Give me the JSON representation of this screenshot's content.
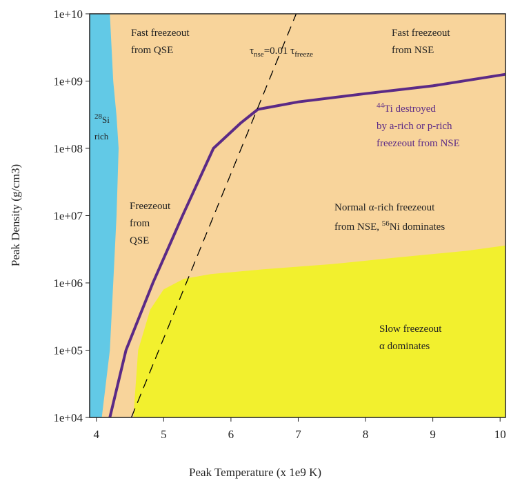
{
  "chart_data": {
    "type": "region",
    "xlabel": "Peak Temperature (x 1e9 K)",
    "ylabel": "Peak Density (g/cm3)",
    "xlim": [
      3.9,
      10.08
    ],
    "ylim": [
      10000,
      10000000000
    ],
    "yscale": "log",
    "background": "#f8d49b",
    "xticks": [
      4,
      5,
      6,
      7,
      8,
      9,
      10
    ],
    "yticks": [
      {
        "value": 10000,
        "label": "1e+04"
      },
      {
        "value": 100000,
        "label": "1e+05"
      },
      {
        "value": 1000000,
        "label": "1e+06"
      },
      {
        "value": 10000000,
        "label": "1e+07"
      },
      {
        "value": 100000000,
        "label": "1e+08"
      },
      {
        "value": 1000000000,
        "label": "1e+09"
      },
      {
        "value": 10000000000,
        "label": "1e+10"
      }
    ],
    "series": [
      {
        "kind": "fill-left",
        "color": "#62c9e6",
        "x": [
          4.2,
          4.25,
          4.3,
          4.33,
          4.3,
          4.25,
          4.2,
          4.08
        ],
        "values": [
          10000000000,
          1000000000,
          300000000,
          100000000,
          10000000,
          1000000,
          100000,
          10000
        ]
      },
      {
        "kind": "fill-below",
        "color": "#f2f02e",
        "x": [
          4.55,
          4.62,
          4.8,
          5.0,
          5.3,
          5.7,
          6.5,
          7.5,
          8.5,
          9.5,
          10.08
        ],
        "values": [
          10000,
          100000,
          400000,
          800000,
          1150000,
          1350000,
          1600000,
          1900000,
          2400000,
          3000000,
          3600000
        ]
      },
      {
        "kind": "line",
        "color": "#5b2a86",
        "x": [
          4.2,
          4.44,
          4.84,
          5.28,
          5.74,
          6.15,
          6.4,
          7.0,
          8.0,
          9.0,
          10.08
        ],
        "values": [
          10000,
          100000,
          1000000,
          10000000,
          100000000,
          240000000,
          380000000,
          490000000,
          650000000,
          850000000,
          1260000000
        ]
      },
      {
        "kind": "dashed",
        "color": "#000000",
        "x": [
          4.52,
          6.97
        ],
        "values": [
          10000,
          10000000000
        ]
      }
    ],
    "annotations": [
      {
        "color": "#222222",
        "lines": [
          [
            {
              "text": "Fast freezeout"
            }
          ],
          [
            {
              "text": "from QSE"
            }
          ]
        ]
      },
      {
        "color": "#222222",
        "lines": [
          [
            {
              "text": "Fast freezeout"
            }
          ],
          [
            {
              "text": "from NSE"
            }
          ]
        ]
      },
      {
        "color": "#222222",
        "lines": [
          [
            {
              "text": "τ"
            },
            {
              "text": "nse",
              "shift": "sub"
            },
            {
              "text": "=0.01 τ"
            },
            {
              "text": "freeze",
              "shift": "sub"
            }
          ]
        ]
      },
      {
        "color": "#222222",
        "lines": [
          [
            {
              "text": "28",
              "shift": "sup"
            },
            {
              "text": "Si"
            }
          ],
          [
            {
              "text": "rich"
            }
          ]
        ]
      },
      {
        "color": "#5b2a86",
        "lines": [
          [
            {
              "text": "44",
              "shift": "sup"
            },
            {
              "text": "Ti destroyed"
            }
          ],
          [
            {
              "text": "by a-rich or p-rich"
            }
          ],
          [
            {
              "text": "freezeout from NSE"
            }
          ]
        ]
      },
      {
        "color": "#222222",
        "lines": [
          [
            {
              "text": "Freezeout"
            }
          ],
          [
            {
              "text": "from"
            }
          ],
          [
            {
              "text": "QSE"
            }
          ]
        ]
      },
      {
        "color": "#222222",
        "lines": [
          [
            {
              "text": "Normal α-rich freezeout"
            }
          ],
          [
            {
              "text": "from NSE, "
            },
            {
              "text": "56",
              "shift": "sup"
            },
            {
              "text": "Ni dominates"
            }
          ]
        ]
      },
      {
        "color": "#222222",
        "lines": [
          [
            {
              "text": "Slow freezeout"
            }
          ],
          [
            {
              "text": "α dominates"
            }
          ]
        ]
      }
    ]
  }
}
